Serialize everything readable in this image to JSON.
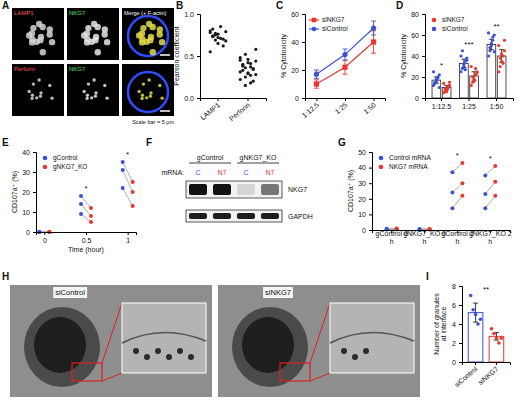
{
  "chart_data": [
    {
      "panel": "A",
      "type": "image",
      "rows": [
        [
          "LAMP1",
          "NKG7",
          "Merge (+ F-actin)"
        ],
        [
          "Perforin",
          "NKG7",
          null
        ]
      ],
      "annotations": [
        "Scale bar = 5 μm"
      ]
    },
    {
      "panel": "B",
      "type": "dot",
      "categories": [
        "LAMP1",
        "Perforin"
      ],
      "values": [
        [
          0.78,
          0.82,
          0.75,
          0.72,
          0.85,
          0.7,
          0.68,
          0.8,
          0.74,
          0.77,
          0.65,
          0.71,
          0.62,
          0.79,
          0.55,
          0.73,
          0.69,
          0.76
        ],
        [
          0.45,
          0.38,
          0.52,
          0.3,
          0.41,
          0.35,
          0.28,
          0.48,
          0.33,
          0.25,
          0.42,
          0.37,
          0.2,
          0.44,
          0.31,
          0.39,
          0.15,
          0.46,
          0.27,
          0.34,
          0.58,
          0.22,
          0.4,
          0.36,
          0.29,
          0.18
        ]
      ],
      "color": "#1a1a1a",
      "ylabel": "Pearson coefficient",
      "ylim": [
        0,
        1
      ],
      "yticks": [
        {
          "value": 0,
          "label": "0.0"
        },
        {
          "value": 0.5,
          "label": "0.5"
        },
        {
          "value": 1,
          "label": "1.0"
        }
      ]
    },
    {
      "panel": "C",
      "type": "line",
      "categories": [
        "1:12.5",
        "1:25",
        "1:50"
      ],
      "series": [
        {
          "name": "siNKG7",
          "color": "#e8372c",
          "marker": "square",
          "values": [
            10,
            22,
            40
          ],
          "errors": [
            3,
            5,
            8
          ]
        },
        {
          "name": "siControl",
          "color": "#3b4fd8",
          "marker": "circle",
          "values": [
            17,
            31,
            50
          ],
          "errors": [
            3,
            4,
            5
          ]
        }
      ],
      "ylabel": "% Cytotoxicity",
      "ylim": [
        0,
        60
      ],
      "yticks": [
        0,
        20,
        40,
        60
      ],
      "legend": "top-left"
    },
    {
      "panel": "D",
      "type": "bar",
      "categories": [
        "1:12.5",
        "1:25",
        "1:50"
      ],
      "series": [
        {
          "name": "siNKG7",
          "color": "#e8372c",
          "values": [
            10,
            21,
            40
          ],
          "errors": [
            2,
            4,
            6
          ],
          "points": [
            [
              5,
              7,
              8,
              10,
              12,
              14,
              9,
              6,
              11,
              15
            ],
            [
              12,
              15,
              18,
              22,
              25,
              30,
              20,
              16,
              28,
              24
            ],
            [
              25,
              30,
              35,
              40,
              45,
              50,
              38,
              42,
              33,
              55
            ]
          ]
        },
        {
          "name": "siControl",
          "color": "#3b4fd8",
          "values": [
            17,
            33,
            51
          ],
          "errors": [
            3,
            4,
            5
          ],
          "points": [
            [
              12,
              15,
              18,
              20,
              22,
              25,
              14,
              16,
              19,
              10
            ],
            [
              25,
              28,
              30,
              35,
              38,
              40,
              45,
              32,
              27,
              36
            ],
            [
              40,
              45,
              50,
              55,
              60,
              62,
              48,
              52,
              58,
              44
            ]
          ]
        }
      ],
      "ylabel": "% Cytotoxicity",
      "ylim": [
        0,
        80
      ],
      "yticks": [
        0,
        20,
        40,
        60,
        80
      ],
      "legend": "top-left",
      "annotations": [
        "*",
        "***",
        "**"
      ]
    },
    {
      "panel": "E",
      "type": "paired",
      "x": [
        0,
        0.5,
        1
      ],
      "xlabel": "Time (hour)",
      "xlim": [
        -0.1,
        1.1
      ],
      "xticks": [
        0,
        0.5,
        1
      ],
      "series": [
        {
          "name": "gControl",
          "color": "#3b4fd8",
          "values": [
            [
              0,
              0,
              0
            ],
            [
              18,
              14,
              9
            ],
            [
              35,
              31,
              22
            ]
          ]
        },
        {
          "name": "gNKG7_KO",
          "color": "#e8372c",
          "values": [
            [
              0,
              0,
              0
            ],
            [
              12,
              8,
              5
            ],
            [
              25,
              20,
              13
            ]
          ]
        }
      ],
      "ylabel": "CD107a⁺ (%)",
      "ylim": [
        0,
        40
      ],
      "yticks": [
        0,
        10,
        20,
        30,
        40
      ],
      "legend": "top-left",
      "annotations": [
        "*",
        "*"
      ]
    },
    {
      "panel": "F",
      "type": "image",
      "groups": [
        "gControl",
        "gNKG7_KO"
      ],
      "lane_label": "mRNA:",
      "lanes": [
        "C",
        "N7",
        "C",
        "N7"
      ],
      "bands": [
        "NKG7",
        "GAPDH"
      ]
    },
    {
      "panel": "G",
      "type": "paired",
      "categories": [
        "gControl 0 h",
        "gNKG7_KO 0 h",
        "gControl 2 h",
        "gNKG7_KO 2 h"
      ],
      "series": [
        {
          "name": "Control mRNA",
          "color": "#3b4fd8",
          "values": [
            [
              0.5,
              0.3,
              0.8
            ],
            [
              0.4,
              0.6,
              0.2
            ],
            [
              37,
              24,
              14
            ],
            [
              35,
              23,
              14
            ]
          ]
        },
        {
          "name": "NKG7 mRNA",
          "color": "#e8372c",
          "values": [
            [
              0.6,
              0.4,
              0.9
            ],
            [
              0.5,
              0.7,
              0.3
            ],
            [
              43,
              30,
              22
            ],
            [
              41,
              31,
              22
            ]
          ]
        }
      ],
      "ylabel": "CD107a⁺ (%)",
      "ylim": [
        0,
        50
      ],
      "yticks": [
        0,
        10,
        20,
        30,
        40,
        50
      ],
      "legend": "top-left",
      "annotations": [
        "*",
        "*"
      ]
    },
    {
      "panel": "H",
      "type": "image",
      "images": [
        "siControl",
        "siNKG7"
      ]
    },
    {
      "panel": "I",
      "type": "bar",
      "categories": [
        "siControl",
        "siNKG7"
      ],
      "values": [
        5.2,
        2.7
      ],
      "errors": [
        1.0,
        0.4
      ],
      "points": [
        [
          7,
          5.5,
          5,
          4,
          4.5
        ],
        [
          3.5,
          3,
          2.5,
          2,
          2.5
        ]
      ],
      "colors": [
        "#3b4fd8",
        "#e8372c"
      ],
      "ylabel": "Number of granules at interface",
      "ylim": [
        0,
        8
      ],
      "yticks": [
        0,
        2,
        4,
        6,
        8
      ],
      "annotations": [
        "**"
      ]
    }
  ]
}
